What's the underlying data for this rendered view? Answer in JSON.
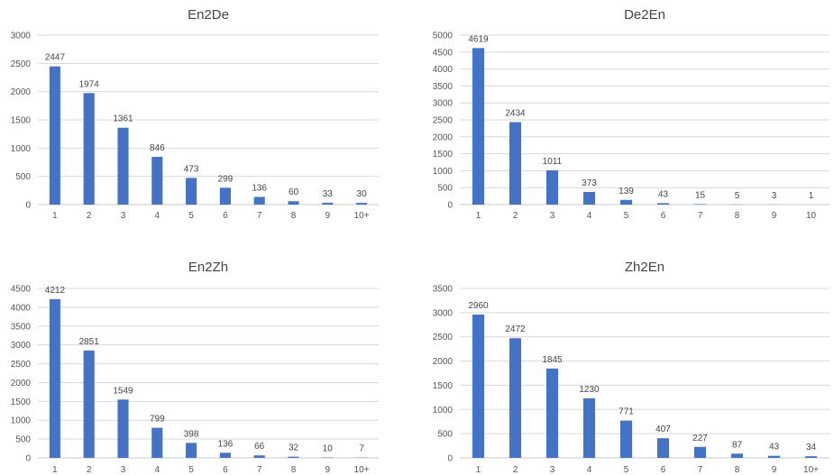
{
  "chart_data": [
    {
      "type": "bar",
      "title": "En2De",
      "categories": [
        "1",
        "2",
        "3",
        "4",
        "5",
        "6",
        "7",
        "8",
        "9",
        "10+"
      ],
      "values": [
        2447,
        1974,
        1361,
        846,
        473,
        299,
        136,
        60,
        33,
        30
      ],
      "yticks": [
        0,
        500,
        1000,
        1500,
        2000,
        2500,
        3000
      ],
      "ylim": [
        0,
        3000
      ],
      "bar_color": "#4472C4",
      "grid": true,
      "legend": "none"
    },
    {
      "type": "bar",
      "title": "De2En",
      "categories": [
        "1",
        "2",
        "3",
        "4",
        "5",
        "6",
        "7",
        "8",
        "9",
        "10"
      ],
      "values": [
        4619,
        2434,
        1011,
        373,
        139,
        43,
        15,
        5,
        3,
        1
      ],
      "yticks": [
        0,
        500,
        1000,
        1500,
        2000,
        2500,
        3000,
        3500,
        4000,
        4500,
        5000
      ],
      "ylim": [
        0,
        5000
      ],
      "bar_color": "#4472C4",
      "grid": true,
      "legend": "none"
    },
    {
      "type": "bar",
      "title": "En2Zh",
      "categories": [
        "1",
        "2",
        "3",
        "4",
        "5",
        "6",
        "7",
        "8",
        "9",
        "10+"
      ],
      "values": [
        4212,
        2851,
        1549,
        799,
        398,
        136,
        66,
        32,
        10,
        7
      ],
      "yticks": [
        0,
        500,
        1000,
        1500,
        2000,
        2500,
        3000,
        3500,
        4000,
        4500
      ],
      "ylim": [
        0,
        4500
      ],
      "bar_color": "#4472C4",
      "grid": true,
      "legend": "none"
    },
    {
      "type": "bar",
      "title": "Zh2En",
      "categories": [
        "1",
        "2",
        "3",
        "4",
        "5",
        "6",
        "7",
        "8",
        "9",
        "10+"
      ],
      "values": [
        2960,
        2472,
        1845,
        1230,
        771,
        407,
        227,
        87,
        43,
        34
      ],
      "yticks": [
        0,
        500,
        1000,
        1500,
        2000,
        2500,
        3000,
        3500
      ],
      "ylim": [
        0,
        3500
      ],
      "bar_color": "#4472C4",
      "grid": true,
      "legend": "none"
    }
  ]
}
